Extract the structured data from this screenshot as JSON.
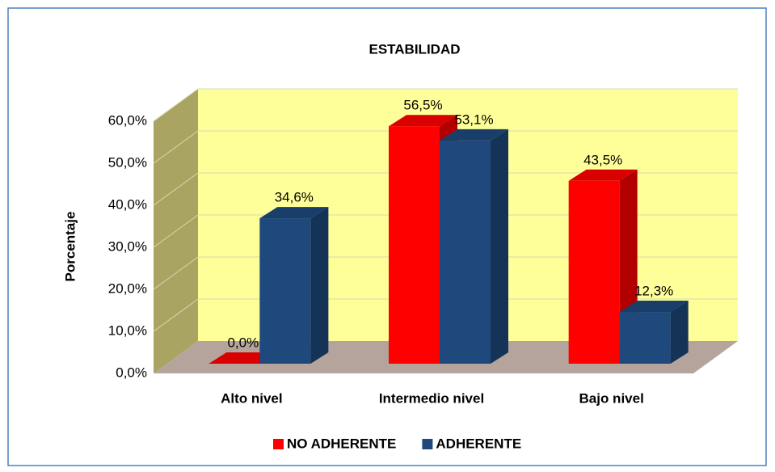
{
  "chart_data": {
    "type": "bar3d",
    "title": "ESTABILIDAD",
    "y_label": "Porcentaje",
    "categories": [
      "Alto nivel",
      "Intermedio nivel",
      "Bajo nivel"
    ],
    "series": [
      {
        "name": "NO ADHERENTE",
        "color": "#ff0000",
        "values": [
          0,
          56.5,
          43.5
        ],
        "value_labels": [
          "0,0%",
          "56,5%",
          "43,5%"
        ]
      },
      {
        "name": "ADHERENTE",
        "color": "#1f497d",
        "values": [
          34.6,
          53.1,
          12.3
        ],
        "value_labels": [
          "34,6%",
          "53,1%",
          "12,3%"
        ]
      }
    ],
    "ylim": [
      0,
      60
    ],
    "yticks": [
      {
        "value": 0,
        "label": "0,0%"
      },
      {
        "value": 10,
        "label": "10,0%"
      },
      {
        "value": 20,
        "label": "20,0%"
      },
      {
        "value": 30,
        "label": "30,0%"
      },
      {
        "value": 40,
        "label": "40,0%"
      },
      {
        "value": 50,
        "label": "50,0%"
      },
      {
        "value": 60,
        "label": "60,0%"
      }
    ],
    "grid": true,
    "legend": "bottom"
  }
}
